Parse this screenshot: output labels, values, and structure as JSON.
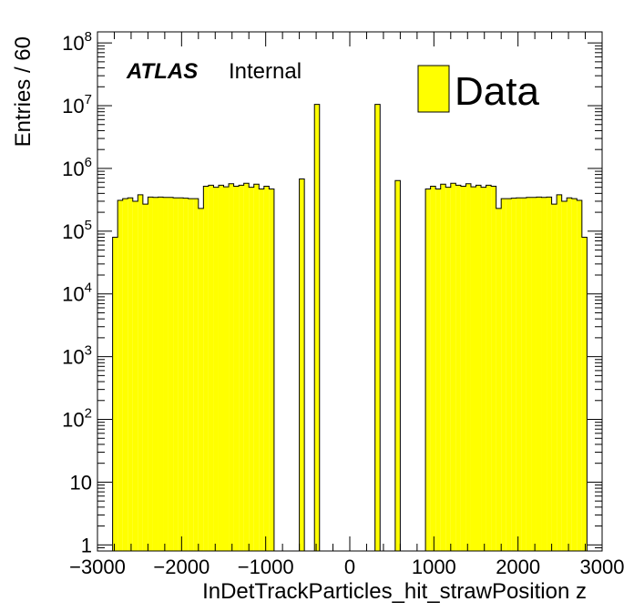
{
  "chart_data": {
    "type": "bar",
    "title": "",
    "xlabel": "InDetTrackParticles_hit_strawPosition z",
    "ylabel": "Entries / 60",
    "x_range": [
      -3000,
      3000
    ],
    "ylim": [
      0.8,
      150000000
    ],
    "y_scale": "log",
    "bin_width": 60,
    "x_ticks": [
      {
        "value": -3000,
        "label": "−3000"
      },
      {
        "value": -2000,
        "label": "−2000"
      },
      {
        "value": -1000,
        "label": "−1000"
      },
      {
        "value": 0,
        "label": "0"
      },
      {
        "value": 1000,
        "label": "1000"
      },
      {
        "value": 2000,
        "label": "2000"
      },
      {
        "value": 3000,
        "label": "3000"
      }
    ],
    "y_ticks": [
      {
        "value": 1,
        "base": "1",
        "exp": ""
      },
      {
        "value": 10,
        "base": "10",
        "exp": ""
      },
      {
        "value": 100,
        "base": "10",
        "exp": "2"
      },
      {
        "value": 1000,
        "base": "10",
        "exp": "3"
      },
      {
        "value": 10000,
        "base": "10",
        "exp": "4"
      },
      {
        "value": 100000,
        "base": "10",
        "exp": "5"
      },
      {
        "value": 1000000,
        "base": "10",
        "exp": "6"
      },
      {
        "value": 10000000,
        "base": "10",
        "exp": "7"
      },
      {
        "value": 100000000,
        "base": "10",
        "exp": "8"
      }
    ],
    "legend": {
      "position": "top-right",
      "label": "Data",
      "color": "#ffff00"
    },
    "annotation": {
      "bold": "ATLAS",
      "text": "Internal"
    },
    "fill_color": "#ffff00",
    "line_color": "#000000",
    "bins": [
      {
        "x": -2790,
        "value": 80000
      },
      {
        "x": -2730,
        "value": 310000
      },
      {
        "x": -2670,
        "value": 330000
      },
      {
        "x": -2610,
        "value": 340000
      },
      {
        "x": -2550,
        "value": 300000
      },
      {
        "x": -2490,
        "value": 380000
      },
      {
        "x": -2430,
        "value": 270000
      },
      {
        "x": -2370,
        "value": 350000
      },
      {
        "x": -2310,
        "value": 345000
      },
      {
        "x": -2250,
        "value": 350000
      },
      {
        "x": -2190,
        "value": 345000
      },
      {
        "x": -2130,
        "value": 345000
      },
      {
        "x": -2070,
        "value": 340000
      },
      {
        "x": -2010,
        "value": 340000
      },
      {
        "x": -1950,
        "value": 335000
      },
      {
        "x": -1890,
        "value": 330000
      },
      {
        "x": -1830,
        "value": 330000
      },
      {
        "x": -1770,
        "value": 230000
      },
      {
        "x": -1710,
        "value": 520000
      },
      {
        "x": -1650,
        "value": 540000
      },
      {
        "x": -1590,
        "value": 500000
      },
      {
        "x": -1530,
        "value": 540000
      },
      {
        "x": -1470,
        "value": 510000
      },
      {
        "x": -1410,
        "value": 570000
      },
      {
        "x": -1350,
        "value": 520000
      },
      {
        "x": -1290,
        "value": 540000
      },
      {
        "x": -1230,
        "value": 580000
      },
      {
        "x": -1170,
        "value": 500000
      },
      {
        "x": -1110,
        "value": 560000
      },
      {
        "x": -1050,
        "value": 470000
      },
      {
        "x": -990,
        "value": 520000
      },
      {
        "x": -930,
        "value": 470000
      },
      {
        "x": -570,
        "value": 680000
      },
      {
        "x": -390,
        "value": 10500000
      },
      {
        "x": 330,
        "value": 10500000
      },
      {
        "x": 570,
        "value": 640000
      },
      {
        "x": 930,
        "value": 470000
      },
      {
        "x": 990,
        "value": 520000
      },
      {
        "x": 1050,
        "value": 470000
      },
      {
        "x": 1110,
        "value": 560000
      },
      {
        "x": 1170,
        "value": 500000
      },
      {
        "x": 1230,
        "value": 580000
      },
      {
        "x": 1290,
        "value": 540000
      },
      {
        "x": 1350,
        "value": 520000
      },
      {
        "x": 1410,
        "value": 570000
      },
      {
        "x": 1470,
        "value": 510000
      },
      {
        "x": 1530,
        "value": 540000
      },
      {
        "x": 1590,
        "value": 500000
      },
      {
        "x": 1650,
        "value": 540000
      },
      {
        "x": 1710,
        "value": 520000
      },
      {
        "x": 1770,
        "value": 230000
      },
      {
        "x": 1830,
        "value": 330000
      },
      {
        "x": 1890,
        "value": 330000
      },
      {
        "x": 1950,
        "value": 335000
      },
      {
        "x": 2010,
        "value": 340000
      },
      {
        "x": 2070,
        "value": 340000
      },
      {
        "x": 2130,
        "value": 345000
      },
      {
        "x": 2190,
        "value": 345000
      },
      {
        "x": 2250,
        "value": 350000
      },
      {
        "x": 2310,
        "value": 345000
      },
      {
        "x": 2370,
        "value": 350000
      },
      {
        "x": 2430,
        "value": 270000
      },
      {
        "x": 2490,
        "value": 380000
      },
      {
        "x": 2550,
        "value": 300000
      },
      {
        "x": 2610,
        "value": 340000
      },
      {
        "x": 2670,
        "value": 330000
      },
      {
        "x": 2730,
        "value": 310000
      },
      {
        "x": 2790,
        "value": 80000
      }
    ]
  }
}
